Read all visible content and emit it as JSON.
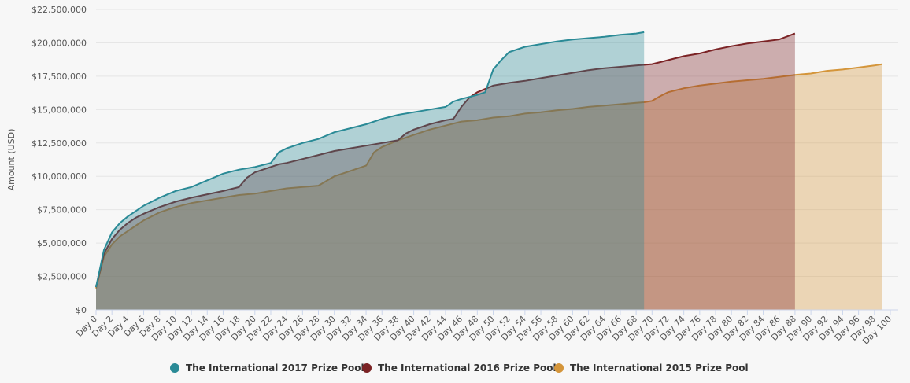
{
  "chart_data": {
    "type": "area",
    "title": "",
    "xlabel": "",
    "ylabel": "Amount (USD)",
    "xlim": [
      0,
      100
    ],
    "ylim": [
      0,
      22500000
    ],
    "y_ticks": [
      0,
      2500000,
      5000000,
      7500000,
      10000000,
      12500000,
      15000000,
      17500000,
      20000000,
      22500000
    ],
    "y_tick_labels": [
      "$0",
      "$2,500,000",
      "$5,000,000",
      "$7,500,000",
      "$10,000,000",
      "$12,500,000",
      "$15,000,000",
      "$17,500,000",
      "$20,000,000",
      "$22,500,000"
    ],
    "x_tick_labels": [
      "Day 0",
      "Day 2",
      "Day 4",
      "Day 6",
      "Day 8",
      "Day 10",
      "Day 12",
      "Day 14",
      "Day 16",
      "Day 18",
      "Day 20",
      "Day 22",
      "Day 24",
      "Day 26",
      "Day 28",
      "Day 30",
      "Day 32",
      "Day 34",
      "Day 36",
      "Day 38",
      "Day 40",
      "Day 42",
      "Day 44",
      "Day 46",
      "Day 48",
      "Day 50",
      "Day 52",
      "Day 54",
      "Day 56",
      "Day 58",
      "Day 60",
      "Day 62",
      "Day 64",
      "Day 66",
      "Day 68",
      "Day 70",
      "Day 72",
      "Day 74",
      "Day 76",
      "Day 78",
      "Day 80",
      "Day 82",
      "Day 84",
      "Day 86",
      "Day 88",
      "Day 90",
      "Day 92",
      "Day 94",
      "Day 96",
      "Day 98",
      "Day 100"
    ],
    "grid": true,
    "legend_position": "bottom-center",
    "series": [
      {
        "name": "The International 2015 Prize Pool",
        "color": "#d4953a",
        "x": [
          0,
          1,
          2,
          3,
          4,
          5,
          6,
          8,
          10,
          12,
          14,
          16,
          18,
          20,
          22,
          24,
          26,
          28,
          30,
          32,
          34,
          35,
          36,
          38,
          40,
          42,
          44,
          46,
          48,
          50,
          52,
          54,
          56,
          58,
          60,
          62,
          64,
          66,
          68,
          69,
          70,
          71,
          72,
          74,
          76,
          78,
          80,
          82,
          84,
          86,
          88,
          90,
          92,
          94,
          96,
          98,
          99
        ],
        "values": [
          1600000,
          4000000,
          4900000,
          5500000,
          5900000,
          6300000,
          6700000,
          7300000,
          7700000,
          8000000,
          8200000,
          8400000,
          8600000,
          8700000,
          8900000,
          9100000,
          9200000,
          9300000,
          10000000,
          10400000,
          10800000,
          11800000,
          12200000,
          12700000,
          13100000,
          13500000,
          13800000,
          14100000,
          14200000,
          14400000,
          14500000,
          14700000,
          14800000,
          14950000,
          15050000,
          15200000,
          15300000,
          15400000,
          15500000,
          15550000,
          15650000,
          16000000,
          16300000,
          16600000,
          16800000,
          16950000,
          17100000,
          17200000,
          17300000,
          17450000,
          17600000,
          17700000,
          17900000,
          18000000,
          18150000,
          18300000,
          18400000
        ]
      },
      {
        "name": "The International 2016 Prize Pool",
        "color": "#7b2325",
        "x": [
          0,
          1,
          2,
          3,
          4,
          5,
          6,
          8,
          10,
          12,
          14,
          16,
          18,
          19,
          20,
          22,
          23,
          24,
          26,
          28,
          30,
          32,
          34,
          36,
          38,
          39,
          40,
          42,
          44,
          45,
          46,
          47,
          48,
          50,
          52,
          54,
          56,
          58,
          60,
          62,
          64,
          66,
          68,
          70,
          71,
          72,
          74,
          76,
          78,
          80,
          82,
          84,
          86,
          88
        ],
        "values": [
          1700000,
          4200000,
          5300000,
          6000000,
          6500000,
          6900000,
          7200000,
          7700000,
          8100000,
          8400000,
          8650000,
          8900000,
          9200000,
          9900000,
          10300000,
          10700000,
          10900000,
          11000000,
          11300000,
          11600000,
          11900000,
          12100000,
          12300000,
          12500000,
          12700000,
          13200000,
          13500000,
          13900000,
          14200000,
          14300000,
          15200000,
          15900000,
          16300000,
          16800000,
          17000000,
          17150000,
          17350000,
          17550000,
          17750000,
          17950000,
          18100000,
          18200000,
          18300000,
          18400000,
          18550000,
          18700000,
          19000000,
          19200000,
          19500000,
          19750000,
          19950000,
          20100000,
          20250000,
          20700000
        ]
      },
      {
        "name": "The International 2017 Prize Pool",
        "color": "#2a8a96",
        "x": [
          0,
          1,
          2,
          3,
          4,
          5,
          6,
          8,
          10,
          12,
          14,
          16,
          18,
          20,
          22,
          23,
          24,
          26,
          28,
          30,
          32,
          34,
          36,
          38,
          40,
          42,
          44,
          45,
          46,
          48,
          49,
          50,
          51,
          52,
          54,
          56,
          58,
          60,
          62,
          64,
          66,
          68,
          69
        ],
        "values": [
          1700000,
          4500000,
          5800000,
          6500000,
          7000000,
          7400000,
          7800000,
          8400000,
          8900000,
          9200000,
          9700000,
          10200000,
          10500000,
          10700000,
          11000000,
          11800000,
          12100000,
          12500000,
          12800000,
          13300000,
          13600000,
          13900000,
          14300000,
          14600000,
          14800000,
          15000000,
          15200000,
          15600000,
          15800000,
          16100000,
          16300000,
          18000000,
          18700000,
          19300000,
          19700000,
          19900000,
          20100000,
          20250000,
          20350000,
          20450000,
          20600000,
          20700000,
          20800000
        ]
      }
    ]
  }
}
